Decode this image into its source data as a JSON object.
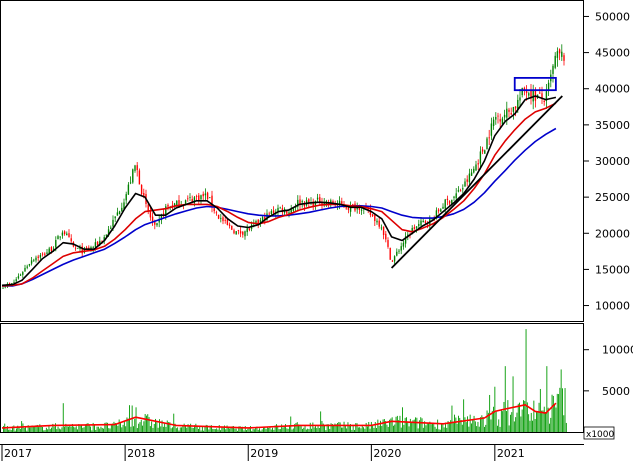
{
  "chart_data": [
    {
      "type": "candlestick",
      "panel": "price",
      "x_axis": {
        "type": "date",
        "range": [
          "2017-01-01",
          "2021-07-31"
        ],
        "tick_labels": [
          "2017",
          "2018",
          "2019",
          "2020",
          "2021"
        ]
      },
      "y_axis": {
        "position": "right",
        "range": [
          8000,
          52000
        ],
        "ticks": [
          10000,
          15000,
          20000,
          25000,
          30000,
          35000,
          40000,
          45000,
          50000
        ],
        "tick_labels": [
          "10000",
          "15000",
          "20000",
          "25000",
          "30000",
          "35000",
          "40000",
          "45000",
          "50000"
        ]
      },
      "grid": false,
      "colors": {
        "up": "#008000",
        "down": "#ff0000",
        "ma_fast": "#000000",
        "ma_mid": "#dd0000",
        "ma_slow": "#0000cc",
        "trendline": "#000000",
        "box": "#0000cc"
      },
      "price_path": [
        [
          "2017-01-01",
          12700
        ],
        [
          "2017-02-01",
          13000
        ],
        [
          "2017-03-01",
          14600
        ],
        [
          "2017-04-01",
          16500
        ],
        [
          "2017-05-01",
          17000
        ],
        [
          "2017-06-01",
          18000
        ],
        [
          "2017-07-01",
          20500
        ],
        [
          "2017-08-01",
          18000
        ],
        [
          "2017-09-01",
          17500
        ],
        [
          "2017-10-01",
          18200
        ],
        [
          "2017-11-01",
          19500
        ],
        [
          "2017-12-01",
          22000
        ],
        [
          "2018-01-01",
          25000
        ],
        [
          "2018-02-01",
          29500
        ],
        [
          "2018-03-01",
          24000
        ],
        [
          "2018-04-01",
          20500
        ],
        [
          "2018-05-01",
          23500
        ],
        [
          "2018-06-01",
          24000
        ],
        [
          "2018-07-01",
          24500
        ],
        [
          "2018-08-01",
          25000
        ],
        [
          "2018-09-01",
          25200
        ],
        [
          "2018-10-01",
          22500
        ],
        [
          "2018-11-01",
          21000
        ],
        [
          "2018-12-01",
          20000
        ],
        [
          "2019-01-01",
          20500
        ],
        [
          "2019-02-01",
          21500
        ],
        [
          "2019-03-01",
          22500
        ],
        [
          "2019-04-01",
          23500
        ],
        [
          "2019-05-01",
          23000
        ],
        [
          "2019-06-01",
          24500
        ],
        [
          "2019-07-01",
          24000
        ],
        [
          "2019-08-01",
          24500
        ],
        [
          "2019-09-01",
          24200
        ],
        [
          "2019-10-01",
          24000
        ],
        [
          "2019-11-01",
          23500
        ],
        [
          "2019-12-01",
          23800
        ],
        [
          "2020-01-01",
          22500
        ],
        [
          "2020-02-01",
          21000
        ],
        [
          "2020-03-01",
          16000
        ],
        [
          "2020-04-01",
          18500
        ],
        [
          "2020-05-01",
          20500
        ],
        [
          "2020-06-01",
          21500
        ],
        [
          "2020-07-01",
          22000
        ],
        [
          "2020-08-01",
          24000
        ],
        [
          "2020-09-01",
          25000
        ],
        [
          "2020-10-01",
          26500
        ],
        [
          "2020-11-01",
          29000
        ],
        [
          "2020-12-01",
          32000
        ],
        [
          "2021-01-01",
          36000
        ],
        [
          "2021-02-01",
          36500
        ],
        [
          "2021-03-01",
          37500
        ],
        [
          "2021-04-01",
          40000
        ],
        [
          "2021-05-01",
          39000
        ],
        [
          "2021-06-01",
          38500
        ],
        [
          "2021-07-01",
          44500
        ]
      ],
      "ma_fast": [
        [
          "2017-01-01",
          12800
        ],
        [
          "2017-02-01",
          12900
        ],
        [
          "2017-03-01",
          13500
        ],
        [
          "2017-04-01",
          15000
        ],
        [
          "2017-05-01",
          16500
        ],
        [
          "2017-06-01",
          17500
        ],
        [
          "2017-07-01",
          18700
        ],
        [
          "2017-08-01",
          18500
        ],
        [
          "2017-09-01",
          17800
        ],
        [
          "2017-10-01",
          17800
        ],
        [
          "2017-11-01",
          19000
        ],
        [
          "2017-12-01",
          21000
        ],
        [
          "2018-01-01",
          23500
        ],
        [
          "2018-02-01",
          25500
        ],
        [
          "2018-03-01",
          25000
        ],
        [
          "2018-04-01",
          22500
        ],
        [
          "2018-05-01",
          22500
        ],
        [
          "2018-06-01",
          23500
        ],
        [
          "2018-07-01",
          24000
        ],
        [
          "2018-08-01",
          24500
        ],
        [
          "2018-09-01",
          24500
        ],
        [
          "2018-10-01",
          23500
        ],
        [
          "2018-11-01",
          22000
        ],
        [
          "2018-12-01",
          21000
        ],
        [
          "2019-01-01",
          20800
        ],
        [
          "2019-02-01",
          21200
        ],
        [
          "2019-03-01",
          22200
        ],
        [
          "2019-04-01",
          23000
        ],
        [
          "2019-05-01",
          23200
        ],
        [
          "2019-06-01",
          24000
        ],
        [
          "2019-07-01",
          24200
        ],
        [
          "2019-08-01",
          24300
        ],
        [
          "2019-09-01",
          24200
        ],
        [
          "2019-10-01",
          24000
        ],
        [
          "2019-11-01",
          23600
        ],
        [
          "2019-12-01",
          23600
        ],
        [
          "2020-01-01",
          23000
        ],
        [
          "2020-02-01",
          22000
        ],
        [
          "2020-03-01",
          19500
        ],
        [
          "2020-04-01",
          19000
        ],
        [
          "2020-05-01",
          20000
        ],
        [
          "2020-06-01",
          21000
        ],
        [
          "2020-07-01",
          21800
        ],
        [
          "2020-08-01",
          23000
        ],
        [
          "2020-09-01",
          24200
        ],
        [
          "2020-10-01",
          25500
        ],
        [
          "2020-11-01",
          27500
        ],
        [
          "2020-12-01",
          30000
        ],
        [
          "2021-01-01",
          33500
        ],
        [
          "2021-02-01",
          35500
        ],
        [
          "2021-03-01",
          36500
        ],
        [
          "2021-04-01",
          38500
        ],
        [
          "2021-05-01",
          39000
        ],
        [
          "2021-06-01",
          38500
        ],
        [
          "2021-07-01",
          38800
        ]
      ],
      "ma_mid": [
        [
          "2017-01-01",
          12700
        ],
        [
          "2017-02-01",
          12800
        ],
        [
          "2017-03-01",
          13000
        ],
        [
          "2017-04-01",
          13800
        ],
        [
          "2017-05-01",
          14800
        ],
        [
          "2017-06-01",
          15800
        ],
        [
          "2017-07-01",
          16800
        ],
        [
          "2017-08-01",
          17300
        ],
        [
          "2017-09-01",
          17500
        ],
        [
          "2017-10-01",
          17700
        ],
        [
          "2017-11-01",
          18200
        ],
        [
          "2017-12-01",
          19200
        ],
        [
          "2018-01-01",
          20500
        ],
        [
          "2018-02-01",
          22000
        ],
        [
          "2018-03-01",
          23000
        ],
        [
          "2018-04-01",
          23200
        ],
        [
          "2018-05-01",
          23400
        ],
        [
          "2018-06-01",
          23800
        ],
        [
          "2018-07-01",
          24000
        ],
        [
          "2018-08-01",
          24000
        ],
        [
          "2018-09-01",
          24000
        ],
        [
          "2018-10-01",
          23700
        ],
        [
          "2018-11-01",
          23000
        ],
        [
          "2018-12-01",
          22200
        ],
        [
          "2019-01-01",
          21500
        ],
        [
          "2019-02-01",
          21300
        ],
        [
          "2019-03-01",
          21600
        ],
        [
          "2019-04-01",
          22200
        ],
        [
          "2019-05-01",
          22600
        ],
        [
          "2019-06-01",
          23200
        ],
        [
          "2019-07-01",
          23600
        ],
        [
          "2019-08-01",
          23900
        ],
        [
          "2019-09-01",
          24000
        ],
        [
          "2019-10-01",
          24000
        ],
        [
          "2019-11-01",
          23800
        ],
        [
          "2019-12-01",
          23700
        ],
        [
          "2020-01-01",
          23400
        ],
        [
          "2020-02-01",
          23000
        ],
        [
          "2020-03-01",
          21800
        ],
        [
          "2020-04-01",
          20500
        ],
        [
          "2020-05-01",
          20200
        ],
        [
          "2020-06-01",
          20700
        ],
        [
          "2020-07-01",
          21300
        ],
        [
          "2020-08-01",
          22200
        ],
        [
          "2020-09-01",
          23300
        ],
        [
          "2020-10-01",
          24500
        ],
        [
          "2020-11-01",
          26200
        ],
        [
          "2020-12-01",
          28200
        ],
        [
          "2021-01-01",
          30800
        ],
        [
          "2021-02-01",
          32800
        ],
        [
          "2021-03-01",
          34300
        ],
        [
          "2021-04-01",
          35800
        ],
        [
          "2021-05-01",
          36800
        ],
        [
          "2021-06-01",
          37300
        ],
        [
          "2021-07-01",
          38000
        ]
      ],
      "ma_slow": [
        [
          "2017-01-01",
          12700
        ],
        [
          "2017-02-01",
          12700
        ],
        [
          "2017-03-01",
          13000
        ],
        [
          "2017-04-01",
          13600
        ],
        [
          "2017-05-01",
          14300
        ],
        [
          "2017-06-01",
          15000
        ],
        [
          "2017-07-01",
          15700
        ],
        [
          "2017-08-01",
          16300
        ],
        [
          "2017-09-01",
          16800
        ],
        [
          "2017-10-01",
          17300
        ],
        [
          "2017-11-01",
          17800
        ],
        [
          "2017-12-01",
          18600
        ],
        [
          "2018-01-01",
          19500
        ],
        [
          "2018-02-01",
          20500
        ],
        [
          "2018-03-01",
          21200
        ],
        [
          "2018-04-01",
          21700
        ],
        [
          "2018-05-01",
          22200
        ],
        [
          "2018-06-01",
          22700
        ],
        [
          "2018-07-01",
          23100
        ],
        [
          "2018-08-01",
          23500
        ],
        [
          "2018-09-01",
          23700
        ],
        [
          "2018-10-01",
          23600
        ],
        [
          "2018-11-01",
          23300
        ],
        [
          "2018-12-01",
          23000
        ],
        [
          "2019-01-01",
          22700
        ],
        [
          "2019-02-01",
          22500
        ],
        [
          "2019-03-01",
          22400
        ],
        [
          "2019-04-01",
          22400
        ],
        [
          "2019-05-01",
          22500
        ],
        [
          "2019-06-01",
          22700
        ],
        [
          "2019-07-01",
          22900
        ],
        [
          "2019-08-01",
          23200
        ],
        [
          "2019-09-01",
          23500
        ],
        [
          "2019-10-01",
          23700
        ],
        [
          "2019-11-01",
          23800
        ],
        [
          "2019-12-01",
          23800
        ],
        [
          "2020-01-01",
          23700
        ],
        [
          "2020-02-01",
          23500
        ],
        [
          "2020-03-01",
          23000
        ],
        [
          "2020-04-01",
          22500
        ],
        [
          "2020-05-01",
          22200
        ],
        [
          "2020-06-01",
          22100
        ],
        [
          "2020-07-01",
          22100
        ],
        [
          "2020-08-01",
          22300
        ],
        [
          "2020-09-01",
          22700
        ],
        [
          "2020-10-01",
          23300
        ],
        [
          "2020-11-01",
          24300
        ],
        [
          "2020-12-01",
          25600
        ],
        [
          "2021-01-01",
          27200
        ],
        [
          "2021-02-01",
          28700
        ],
        [
          "2021-03-01",
          30100
        ],
        [
          "2021-04-01",
          31500
        ],
        [
          "2021-05-01",
          32700
        ],
        [
          "2021-06-01",
          33700
        ],
        [
          "2021-07-01",
          34500
        ]
      ],
      "trendlines": [
        {
          "from": [
            "2020-03-01",
            15200
          ],
          "to": [
            "2021-07-20",
            39000
          ]
        }
      ],
      "highlight_box": {
        "x": [
          "2021-03-01",
          "2021-07-01"
        ],
        "y": [
          39800,
          41500
        ]
      }
    },
    {
      "type": "bar",
      "panel": "volume",
      "y_axis": {
        "position": "right",
        "range": [
          0,
          13000
        ],
        "ticks": [
          0,
          5000,
          10000
        ],
        "tick_labels": [
          "0",
          "5000",
          "10000"
        ],
        "unit_label": "x1000"
      },
      "colors": {
        "bars": "#009900",
        "ma_volume": "#ff0000"
      },
      "volume_baseline": [
        [
          "2017-01-01",
          400
        ],
        [
          "2017-06-01",
          600
        ],
        [
          "2017-12-01",
          700
        ],
        [
          "2018-02-01",
          1500
        ],
        [
          "2018-06-01",
          600
        ],
        [
          "2019-01-01",
          400
        ],
        [
          "2019-06-01",
          700
        ],
        [
          "2020-01-01",
          700
        ],
        [
          "2020-03-01",
          1200
        ],
        [
          "2020-08-01",
          900
        ],
        [
          "2020-12-01",
          1500
        ],
        [
          "2021-02-01",
          2200
        ],
        [
          "2021-04-01",
          2500
        ],
        [
          "2021-06-01",
          2000
        ],
        [
          "2021-07-01",
          3200
        ]
      ],
      "volume_spikes": [
        [
          "2021-04-01",
          12500
        ],
        [
          "2021-02-01",
          8000
        ],
        [
          "2021-06-01",
          8000
        ],
        [
          "2021-07-15",
          7600
        ],
        [
          "2021-01-01",
          5500
        ],
        [
          "2020-12-15",
          4500
        ],
        [
          "2017-07-01",
          3500
        ],
        [
          "2018-02-01",
          3000
        ],
        [
          "2020-04-01",
          3000
        ],
        [
          "2019-08-01",
          2500
        ]
      ],
      "ma_volume": [
        [
          "2017-01-01",
          500
        ],
        [
          "2017-06-01",
          800
        ],
        [
          "2017-12-01",
          900
        ],
        [
          "2018-02-01",
          1800
        ],
        [
          "2018-06-01",
          800
        ],
        [
          "2019-01-01",
          500
        ],
        [
          "2019-06-01",
          800
        ],
        [
          "2020-01-01",
          800
        ],
        [
          "2020-03-01",
          1300
        ],
        [
          "2020-08-01",
          1000
        ],
        [
          "2020-12-01",
          1700
        ],
        [
          "2021-01-01",
          2500
        ],
        [
          "2021-02-01",
          2800
        ],
        [
          "2021-04-01",
          3300
        ],
        [
          "2021-05-01",
          2500
        ],
        [
          "2021-06-01",
          2300
        ],
        [
          "2021-07-01",
          3500
        ]
      ]
    }
  ]
}
